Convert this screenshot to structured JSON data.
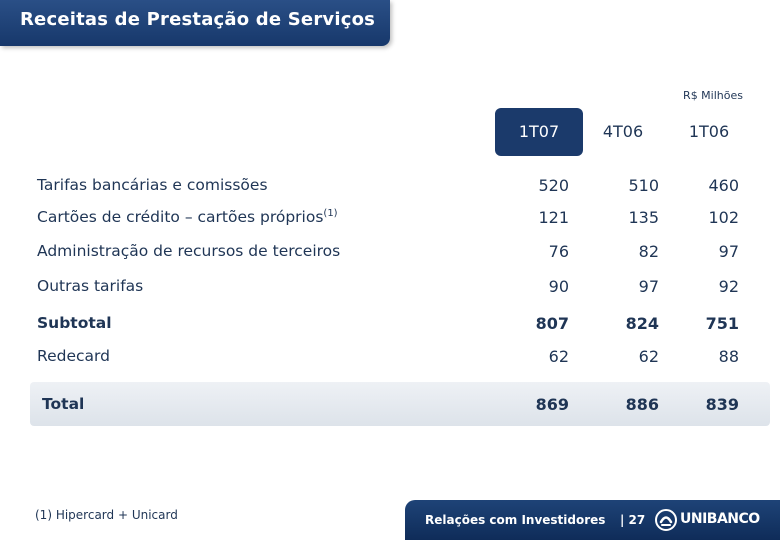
{
  "title": "Receitas de Prestação de Serviços",
  "unit": "R$ Milhões",
  "columns": [
    "1T07",
    "4T06",
    "1T06"
  ],
  "rows": [
    {
      "label": "Tarifas bancárias e comissões",
      "note": "",
      "values": [
        "520",
        "510",
        "460"
      ]
    },
    {
      "label": "Cartões de crédito – cartões próprios",
      "note": "(1)",
      "values": [
        "121",
        "135",
        "102"
      ]
    },
    {
      "label": "Administração de recursos de terceiros",
      "note": "",
      "values": [
        "76",
        "82",
        "97"
      ]
    },
    {
      "label": "Outras tarifas",
      "note": "",
      "values": [
        "90",
        "97",
        "92"
      ]
    },
    {
      "label": "Subtotal",
      "note": "",
      "values": [
        "807",
        "824",
        "751"
      ]
    },
    {
      "label": "Redecard",
      "note": "",
      "values": [
        "62",
        "62",
        "88"
      ]
    },
    {
      "label": "Total",
      "note": "",
      "values": [
        "869",
        "886",
        "839"
      ]
    }
  ],
  "footnote": "(1) Hipercard + Unicard",
  "footer": {
    "section": "Relações com Investidores",
    "page": "| 27",
    "brand": "UNIBANCO",
    "logo_icon": "unibanco-logo-icon"
  },
  "colors": {
    "navy": "#1b3a6b",
    "text": "#1f3555"
  }
}
